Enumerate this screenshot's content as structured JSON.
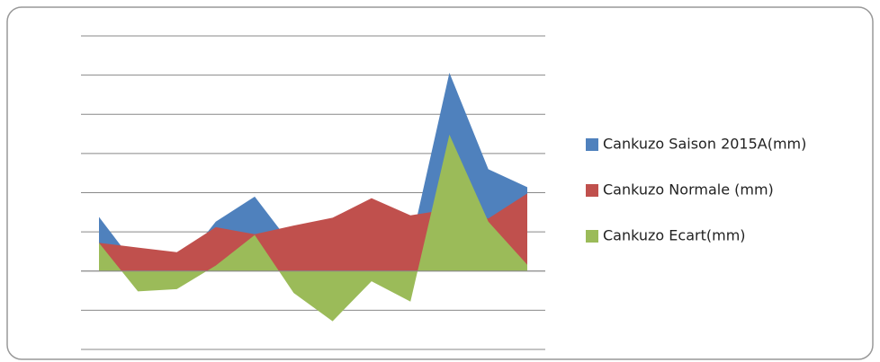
{
  "chart_data": {
    "type": "area",
    "categories": [
      null,
      null,
      null,
      null,
      null,
      null,
      null,
      null,
      null,
      null,
      null,
      null
    ],
    "series": [
      {
        "name": "Cankuzo Saison 2015A(mm)",
        "color": "#4f81bd",
        "values": [
          69,
          4,
          1,
          63,
          95,
          30,
          4,
          80,
          32,
          253,
          130,
          107
        ]
      },
      {
        "name": "Cankuzo Normale (mm)",
        "color": "#c0504d",
        "values": [
          36,
          30,
          24,
          56,
          47,
          58,
          68,
          93,
          71,
          79,
          67,
          99
        ]
      },
      {
        "name": "Cankuzo Ecart(mm)",
        "color": "#9bbb59",
        "values": [
          36,
          -26,
          -23,
          7,
          46,
          -28,
          -64,
          -13,
          -39,
          174,
          63,
          8
        ]
      }
    ],
    "ylim": [
      -100,
      300
    ],
    "yticks": [
      -100,
      -50,
      0,
      50,
      100,
      150,
      200,
      250,
      300
    ],
    "grid": true,
    "legend": "right"
  }
}
